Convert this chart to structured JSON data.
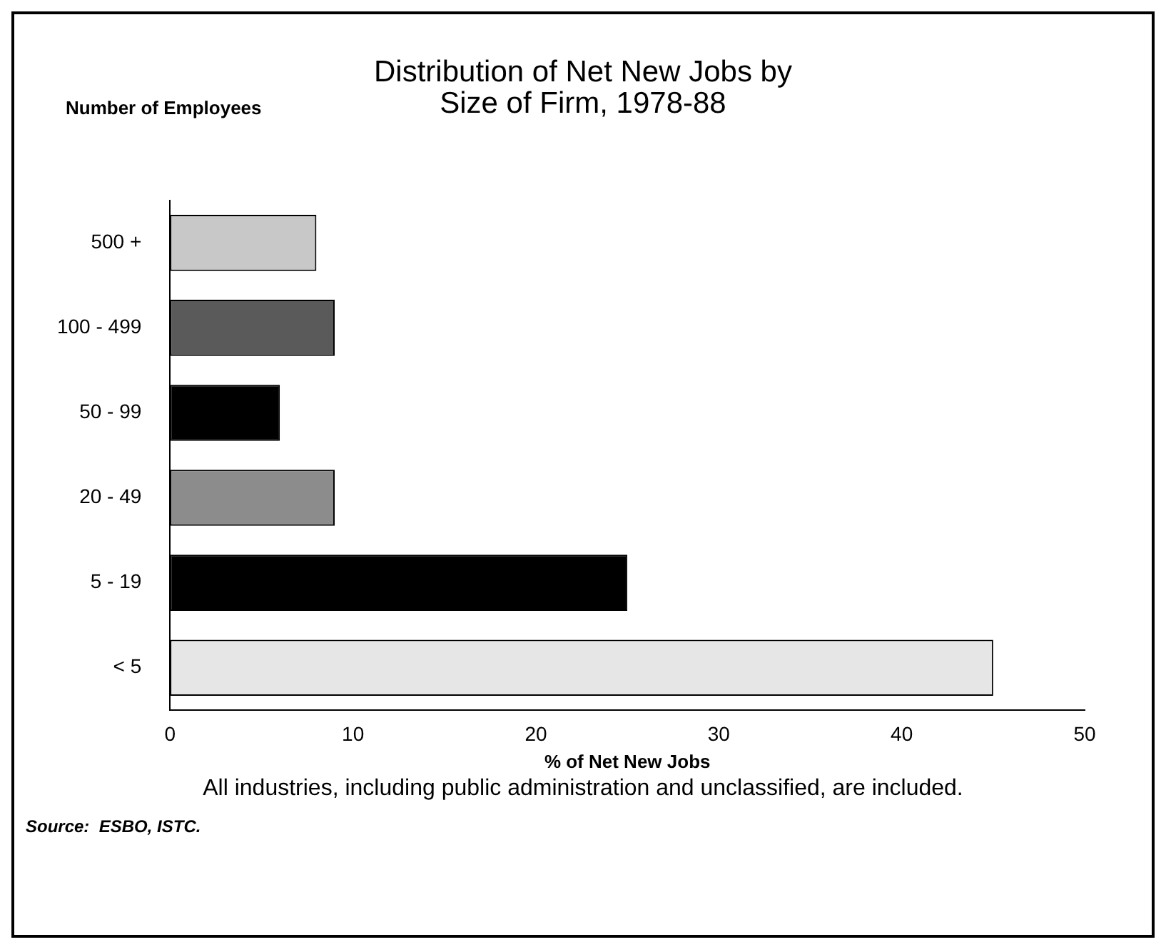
{
  "chart_data": {
    "type": "bar",
    "orientation": "horizontal",
    "title": "Distribution of Net New Jobs by\nSize of Firm, 1978-88",
    "ylabel": "Number of Employees",
    "xlabel": "% of Net New Jobs",
    "categories": [
      "500 +",
      "100 - 499",
      "50 - 99",
      "20 - 49",
      "5 - 19",
      "< 5"
    ],
    "values": [
      8,
      9,
      6,
      9,
      25,
      45
    ],
    "colors": [
      "#c8c8c8",
      "#5a5a5a",
      "#000000",
      "#8c8c8c",
      "#000000",
      "#e6e6e6"
    ],
    "xlim": [
      0,
      50
    ],
    "xticks": [
      0,
      10,
      20,
      30,
      40,
      50
    ],
    "grid": false,
    "legend": false,
    "annotations": [
      "All industries, including public administration and unclassified, are included.",
      "Source:  ESBO, ISTC."
    ]
  }
}
